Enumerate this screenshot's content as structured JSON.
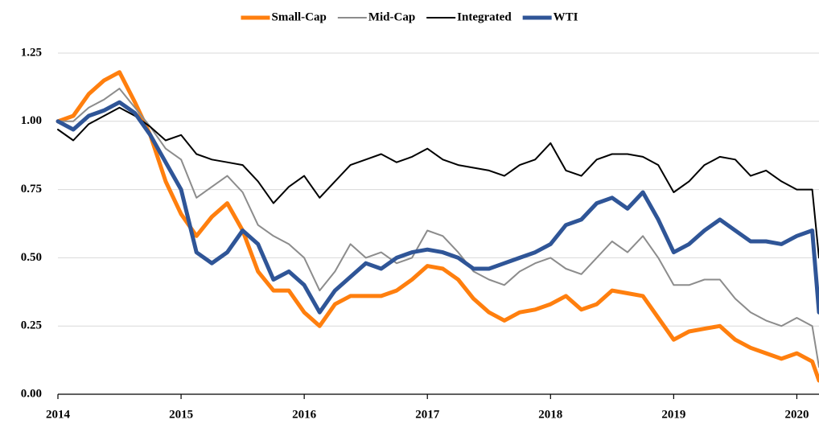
{
  "chart_data": {
    "type": "line",
    "x": [
      2014.0,
      2014.125,
      2014.25,
      2014.375,
      2014.5,
      2014.625,
      2014.75,
      2014.875,
      2015.0,
      2015.125,
      2015.25,
      2015.375,
      2015.5,
      2015.625,
      2015.75,
      2015.875,
      2016.0,
      2016.125,
      2016.25,
      2016.375,
      2016.5,
      2016.625,
      2016.75,
      2016.875,
      2017.0,
      2017.125,
      2017.25,
      2017.375,
      2017.5,
      2017.625,
      2017.75,
      2017.875,
      2018.0,
      2018.125,
      2018.25,
      2018.375,
      2018.5,
      2018.625,
      2018.75,
      2018.875,
      2019.0,
      2019.125,
      2019.25,
      2019.375,
      2019.5,
      2019.625,
      2019.75,
      2019.875,
      2020.0,
      2020.125,
      2020.18
    ],
    "series": [
      {
        "name": "Small-Cap",
        "color": "#ff7f0e",
        "line_width": 5,
        "values": [
          1.0,
          1.02,
          1.1,
          1.15,
          1.18,
          1.07,
          0.95,
          0.78,
          0.66,
          0.58,
          0.65,
          0.7,
          0.6,
          0.45,
          0.38,
          0.38,
          0.3,
          0.25,
          0.33,
          0.36,
          0.36,
          0.36,
          0.38,
          0.42,
          0.47,
          0.46,
          0.42,
          0.35,
          0.3,
          0.27,
          0.3,
          0.31,
          0.33,
          0.36,
          0.31,
          0.33,
          0.38,
          0.37,
          0.36,
          0.28,
          0.2,
          0.23,
          0.24,
          0.25,
          0.2,
          0.17,
          0.15,
          0.13,
          0.15,
          0.12,
          0.05
        ]
      },
      {
        "name": "Mid-Cap",
        "color": "#8c8c8c",
        "line_width": 2,
        "values": [
          1.0,
          1.0,
          1.05,
          1.08,
          1.12,
          1.05,
          0.98,
          0.9,
          0.86,
          0.72,
          0.76,
          0.8,
          0.74,
          0.62,
          0.58,
          0.55,
          0.5,
          0.38,
          0.45,
          0.55,
          0.5,
          0.52,
          0.48,
          0.5,
          0.6,
          0.58,
          0.52,
          0.45,
          0.42,
          0.4,
          0.45,
          0.48,
          0.5,
          0.46,
          0.44,
          0.5,
          0.56,
          0.52,
          0.58,
          0.5,
          0.4,
          0.4,
          0.42,
          0.42,
          0.35,
          0.3,
          0.27,
          0.25,
          0.28,
          0.25,
          0.1
        ]
      },
      {
        "name": "Integrated",
        "color": "#000000",
        "line_width": 2,
        "values": [
          0.97,
          0.93,
          0.99,
          1.02,
          1.05,
          1.02,
          0.98,
          0.93,
          0.95,
          0.88,
          0.86,
          0.85,
          0.84,
          0.78,
          0.7,
          0.76,
          0.8,
          0.72,
          0.78,
          0.84,
          0.86,
          0.88,
          0.85,
          0.87,
          0.9,
          0.86,
          0.84,
          0.83,
          0.82,
          0.8,
          0.84,
          0.86,
          0.92,
          0.82,
          0.8,
          0.86,
          0.88,
          0.88,
          0.87,
          0.84,
          0.74,
          0.78,
          0.84,
          0.87,
          0.86,
          0.8,
          0.82,
          0.78,
          0.75,
          0.75,
          0.5
        ]
      },
      {
        "name": "WTI",
        "color": "#2f5597",
        "line_width": 5,
        "values": [
          1.0,
          0.97,
          1.02,
          1.04,
          1.07,
          1.03,
          0.95,
          0.85,
          0.75,
          0.52,
          0.48,
          0.52,
          0.6,
          0.55,
          0.42,
          0.45,
          0.4,
          0.3,
          0.38,
          0.43,
          0.48,
          0.46,
          0.5,
          0.52,
          0.53,
          0.52,
          0.5,
          0.46,
          0.46,
          0.48,
          0.5,
          0.52,
          0.55,
          0.62,
          0.64,
          0.7,
          0.72,
          0.68,
          0.74,
          0.64,
          0.52,
          0.55,
          0.6,
          0.64,
          0.6,
          0.56,
          0.56,
          0.55,
          0.58,
          0.6,
          0.3
        ]
      }
    ],
    "xlim": [
      2014,
      2020.18
    ],
    "xticks": [
      2014,
      2015,
      2016,
      2017,
      2018,
      2019,
      2020
    ],
    "ylim": [
      0,
      1.25
    ],
    "yticks": [
      {
        "value": 0,
        "label": "0.00"
      },
      {
        "value": 0.25,
        "label": "0.25"
      },
      {
        "value": 0.5,
        "label": "0.50"
      },
      {
        "value": 0.75,
        "label": "0.75"
      },
      {
        "value": 1,
        "label": "1.00"
      },
      {
        "value": 1.25,
        "label": "1.25"
      }
    ],
    "grid": true,
    "legend": "top"
  }
}
